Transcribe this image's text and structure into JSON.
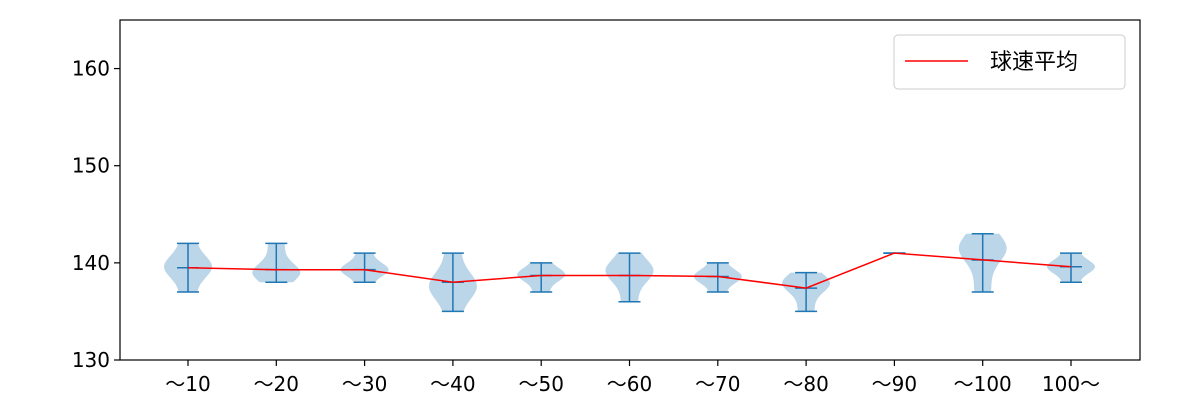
{
  "chart_data": {
    "type": "violin",
    "categories": [
      "～10",
      "～20",
      "～30",
      "～40",
      "～50",
      "～60",
      "～70",
      "～80",
      "～90",
      "～100",
      "100～"
    ],
    "ylim": [
      130,
      165
    ],
    "yticks": [
      130,
      140,
      150,
      160
    ],
    "legend": {
      "position": "top-right",
      "entries": [
        "球速平均"
      ]
    },
    "series": [
      {
        "name": "球速平均",
        "kind": "line",
        "color": "#ff0000",
        "values": [
          139.5,
          139.3,
          139.3,
          138.0,
          138.7,
          138.7,
          138.6,
          137.4,
          141.0,
          140.3,
          139.6
        ]
      }
    ],
    "distributions": [
      {
        "min": 137,
        "max": 142,
        "mean": 139.5,
        "max_density_y": 139.6
      },
      {
        "min": 138,
        "max": 142,
        "mean": 139.3,
        "max_density_y": 139.0
      },
      {
        "min": 138,
        "max": 141,
        "mean": 139.3,
        "max_density_y": 139.3
      },
      {
        "min": 135,
        "max": 141,
        "mean": 138.0,
        "max_density_y": 137.6
      },
      {
        "min": 137,
        "max": 140,
        "mean": 138.7,
        "max_density_y": 138.8
      },
      {
        "min": 136,
        "max": 141,
        "mean": 138.7,
        "max_density_y": 139.2
      },
      {
        "min": 137,
        "max": 140,
        "mean": 138.6,
        "max_density_y": 138.6
      },
      {
        "min": 135,
        "max": 139,
        "mean": 137.4,
        "max_density_y": 137.9
      },
      {
        "min": 141,
        "max": 141,
        "mean": 141.0,
        "max_density_y": 141.0
      },
      {
        "min": 137,
        "max": 143,
        "mean": 140.3,
        "max_density_y": 141.5
      },
      {
        "min": 138,
        "max": 141,
        "mean": 139.6,
        "max_density_y": 139.6
      }
    ],
    "violin_color": "#b8d4e8",
    "extrema_color": "#1f77b4",
    "grid": false
  }
}
